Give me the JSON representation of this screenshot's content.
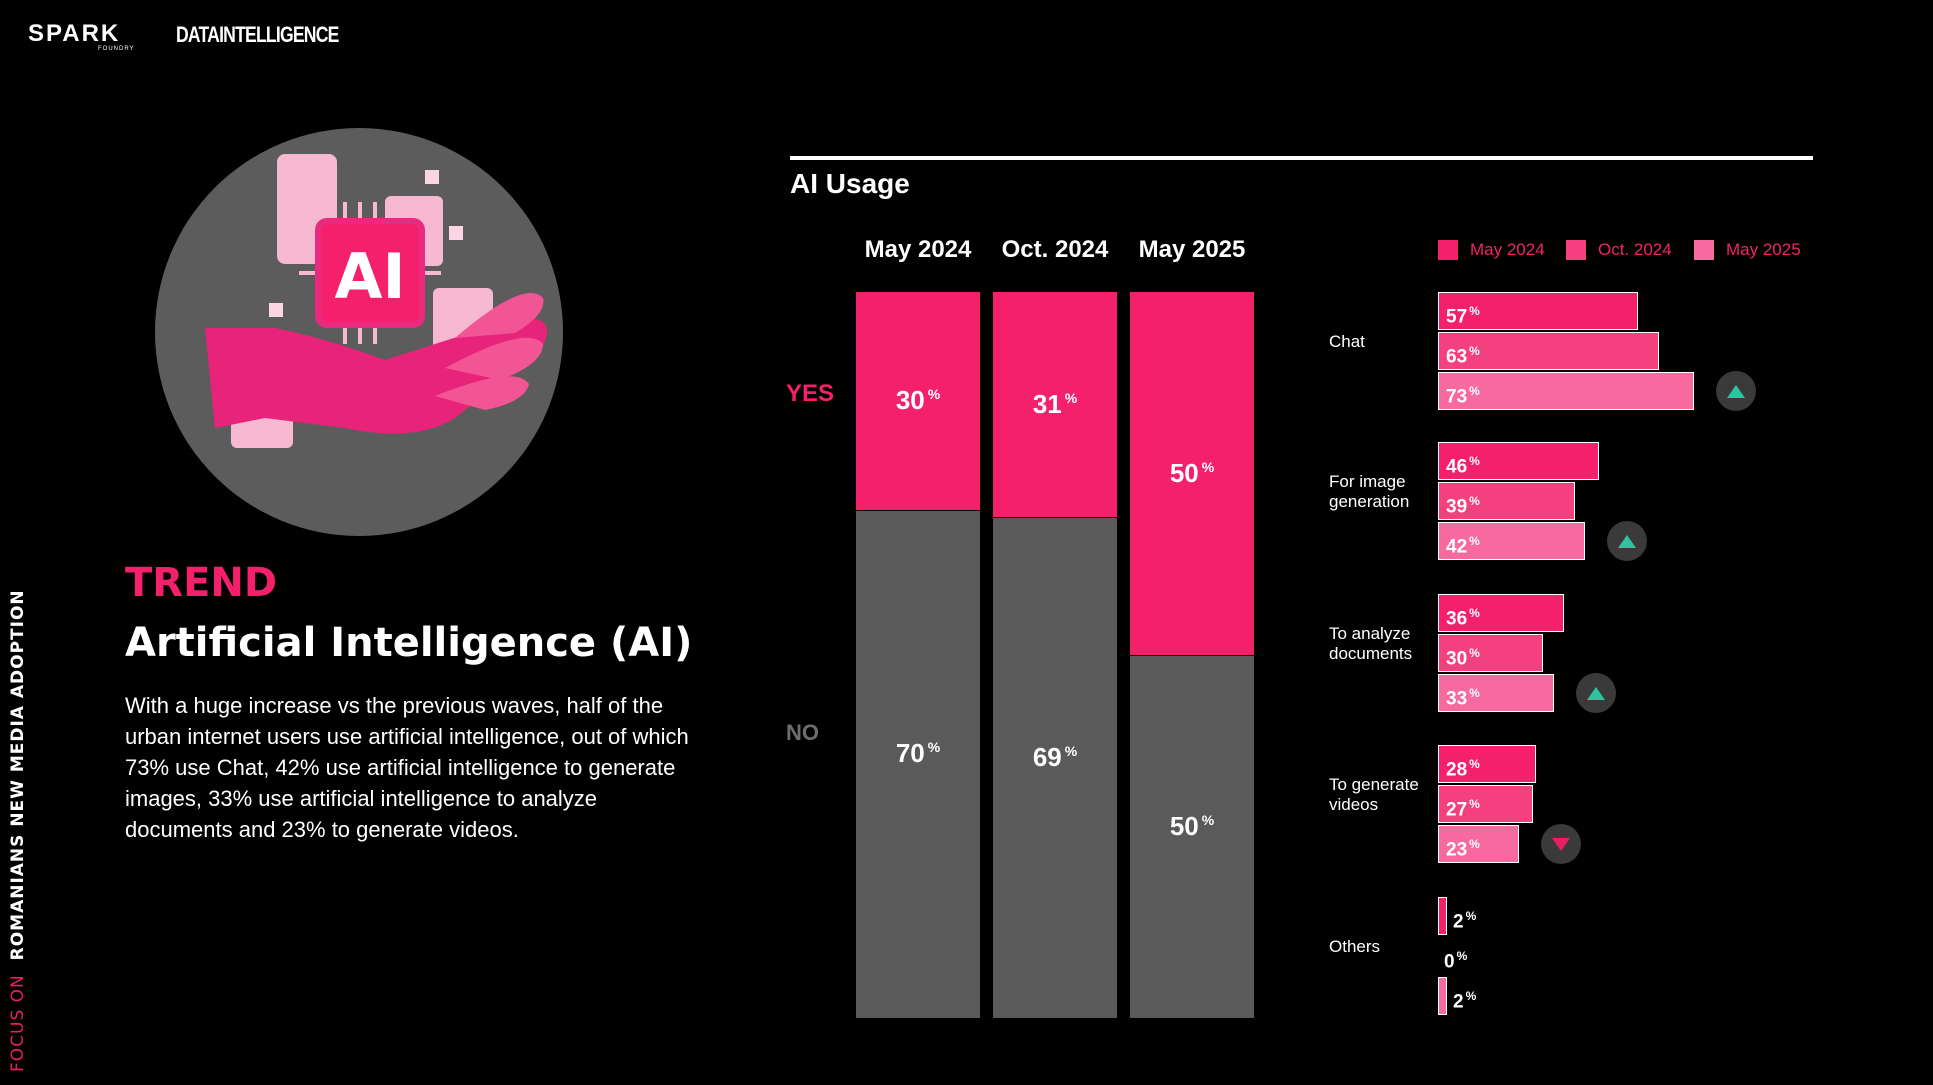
{
  "brand": {
    "spark": "SPARK",
    "spark_sub": "FOUNDRY",
    "data_intelligence": "DATAINTELLIGENCE"
  },
  "side_text": {
    "prefix": "FOCUS ON",
    "main": "ROMANIANS NEW MEDIA ADOPTION"
  },
  "illustration": {
    "badge_text": "AI",
    "icon": "robot-hand-ai-chip-icon"
  },
  "trend": {
    "label": "TREND",
    "title": "Artificial Intelligence (AI)",
    "body": "With a huge increase vs the previous waves, half of the urban internet users use artificial intelligence, out of which 73% use Chat, 42% use artificial intelligence to generate images, 33% use artificial intelligence to analyze documents and 23% to generate videos."
  },
  "colors": {
    "accent": "#f5206b",
    "may2024": "#f5206b",
    "oct2024": "#f4407f",
    "may2025": "#f76aa0",
    "no_gray": "#5a5a5a",
    "up": "#2ec4a0",
    "down": "#e91e63"
  },
  "chart_data": [
    {
      "type": "bar",
      "stacked": true,
      "title": "AI Usage",
      "categories": [
        "May 2024",
        "Oct. 2024",
        "May 2025"
      ],
      "series": [
        {
          "name": "YES",
          "values": [
            30,
            31,
            50
          ]
        },
        {
          "name": "NO",
          "values": [
            70,
            69,
            50
          ]
        }
      ],
      "unit": "%",
      "ylim": [
        0,
        100
      ]
    },
    {
      "type": "bar",
      "orientation": "horizontal",
      "legend": [
        "May 2024",
        "Oct. 2024",
        "May 2025"
      ],
      "legend_position": "top-right",
      "groups": [
        {
          "label": "Chat",
          "values": [
            57,
            63,
            73
          ],
          "trend": "up"
        },
        {
          "label": "For image generation",
          "values": [
            46,
            39,
            42
          ],
          "trend": "up"
        },
        {
          "label": "To analyze documents",
          "values": [
            36,
            30,
            33
          ],
          "trend": "up"
        },
        {
          "label": "To generate videos",
          "values": [
            28,
            27,
            23
          ],
          "trend": "down"
        },
        {
          "label": "Others",
          "values": [
            2,
            0,
            2
          ],
          "trend": ""
        }
      ],
      "unit": "%"
    }
  ]
}
